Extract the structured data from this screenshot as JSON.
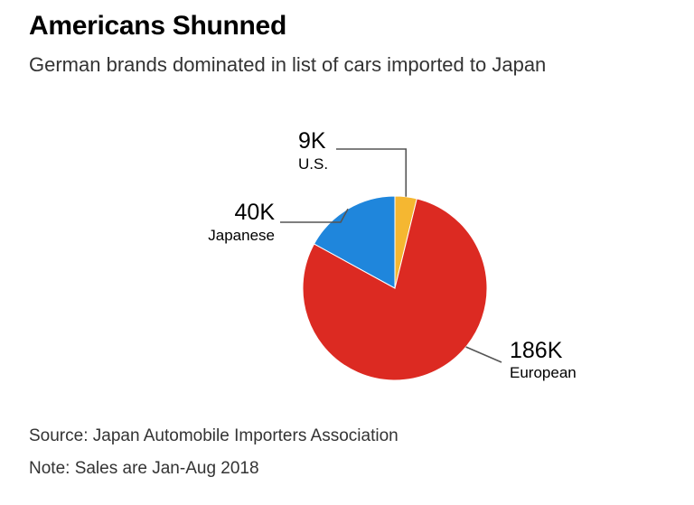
{
  "header": {
    "title": "Americans Shunned",
    "subtitle": "German brands dominated in list of cars imported to Japan"
  },
  "chart_data": {
    "type": "pie",
    "title": "Americans Shunned",
    "subtitle": "German brands dominated in list of cars imported to Japan",
    "categories": [
      "U.S.",
      "European",
      "Japanese"
    ],
    "values": [
      9,
      186,
      40
    ],
    "value_labels": [
      "9K",
      "186K",
      "40K"
    ],
    "colors": [
      "#f5b731",
      "#dc2a22",
      "#1f86dc"
    ],
    "start_angle_deg": 0,
    "direction": "clockwise"
  },
  "footer": {
    "source": "Source: Japan Automobile Importers Association",
    "note": "Note: Sales are Jan-Aug 2018"
  }
}
